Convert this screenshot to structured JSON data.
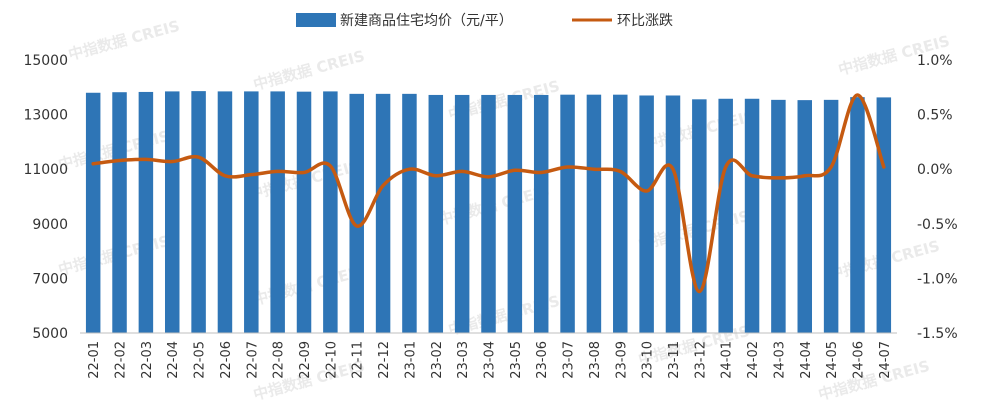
{
  "watermark": "中指数据 CREIS",
  "chart_data": {
    "type": "bar",
    "categories": [
      "22-01",
      "22-02",
      "22-03",
      "22-04",
      "22-05",
      "22-06",
      "22-07",
      "22-08",
      "22-09",
      "22-10",
      "22-11",
      "22-12",
      "23-01",
      "23-02",
      "23-03",
      "23-04",
      "23-05",
      "23-06",
      "23-07",
      "23-08",
      "23-09",
      "23-10",
      "23-11",
      "23-12",
      "24-01",
      "24-02",
      "24-03",
      "24-04",
      "24-05",
      "24-06",
      "24-07"
    ],
    "series": [
      {
        "name": "新建商品住宅均价（元/平）",
        "type": "bar",
        "axis": "left",
        "color": "#2E75B6",
        "values": [
          13800,
          13820,
          13830,
          13850,
          13860,
          13850,
          13850,
          13850,
          13840,
          13850,
          13760,
          13760,
          13760,
          13720,
          13720,
          13720,
          13720,
          13720,
          13730,
          13730,
          13730,
          13700,
          13700,
          13560,
          13580,
          13580,
          13540,
          13530,
          13540,
          13640,
          13630
        ]
      },
      {
        "name": "环比涨跌",
        "type": "line",
        "axis": "right",
        "color": "#C55A11",
        "values": [
          0.05,
          0.08,
          0.09,
          0.07,
          0.11,
          -0.06,
          -0.05,
          -0.02,
          -0.03,
          0.03,
          -0.52,
          -0.15,
          0.0,
          -0.06,
          -0.02,
          -0.07,
          -0.01,
          -0.03,
          0.02,
          0.0,
          -0.02,
          -0.2,
          0.0,
          -1.12,
          0.02,
          -0.06,
          -0.08,
          -0.06,
          0.02,
          0.68,
          0.02
        ]
      }
    ],
    "yleft": {
      "ylim": [
        5000,
        15000
      ],
      "ticks": [
        5000,
        7000,
        9000,
        11000,
        13000,
        15000
      ]
    },
    "yright": {
      "ylim": [
        -1.5,
        1.0
      ],
      "ticks": [
        1.0,
        0.5,
        0.0,
        -0.5,
        -1.0,
        -1.5
      ],
      "tick_labels": [
        "1.0%",
        "0.5%",
        "0.0%",
        "-0.5%",
        "-1.0%",
        "-1.5%"
      ]
    },
    "legend": "top-center",
    "grid": false
  }
}
